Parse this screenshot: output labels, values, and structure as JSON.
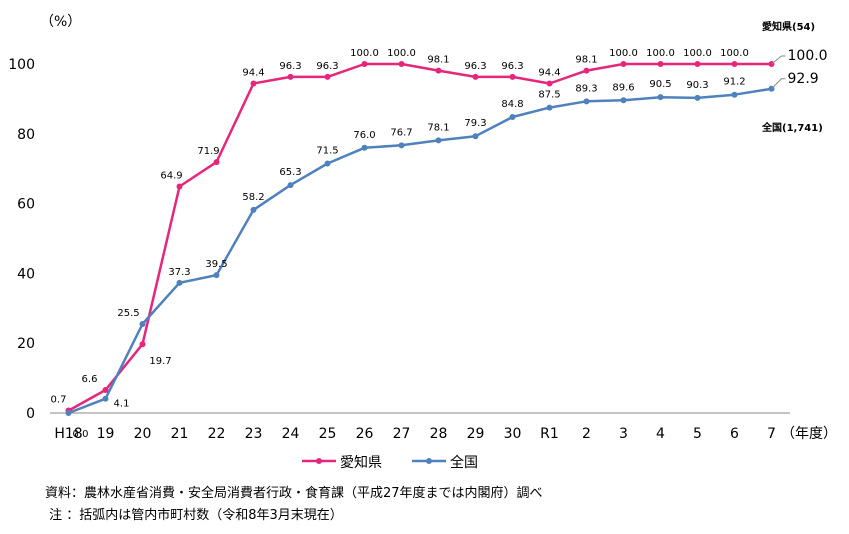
{
  "chart_data": {
    "type": "line",
    "unit_label": "（%）",
    "x_axis_label": "（年度）",
    "categories": [
      "H18",
      "19",
      "20",
      "21",
      "22",
      "23",
      "24",
      "25",
      "26",
      "27",
      "28",
      "29",
      "30",
      "R1",
      "2",
      "3",
      "4",
      "5",
      "6",
      "7"
    ],
    "ylim": [
      0,
      100
    ],
    "yticks": [
      0,
      20,
      40,
      60,
      80,
      100
    ],
    "grid": false,
    "series": [
      {
        "name": "愛知県",
        "color": "#e6267a",
        "end_label": "愛知県(54)",
        "end_value_label": "100.0",
        "values": [
          0.7,
          6.6,
          19.7,
          64.9,
          71.9,
          94.4,
          96.3,
          96.3,
          100.0,
          100.0,
          98.1,
          96.3,
          96.3,
          94.4,
          98.1,
          100.0,
          100.0,
          100.0,
          100.0,
          100.0
        ]
      },
      {
        "name": "全国",
        "color": "#4f81bd",
        "end_label": "全国(1,741)",
        "end_value_label": "92.9",
        "values": [
          0.0,
          4.1,
          25.5,
          37.3,
          39.5,
          58.2,
          65.3,
          71.5,
          76.0,
          76.7,
          78.1,
          79.3,
          84.8,
          87.5,
          89.3,
          89.6,
          90.5,
          90.3,
          91.2,
          92.9
        ]
      }
    ]
  },
  "source_note": "資料：農林水産省消費・安全局消費者行政・食育課（平成27年度までは内閣府）調べ",
  "footnote": " 注 ：括弧内は管内市町村数（令和8年3月末現在）"
}
